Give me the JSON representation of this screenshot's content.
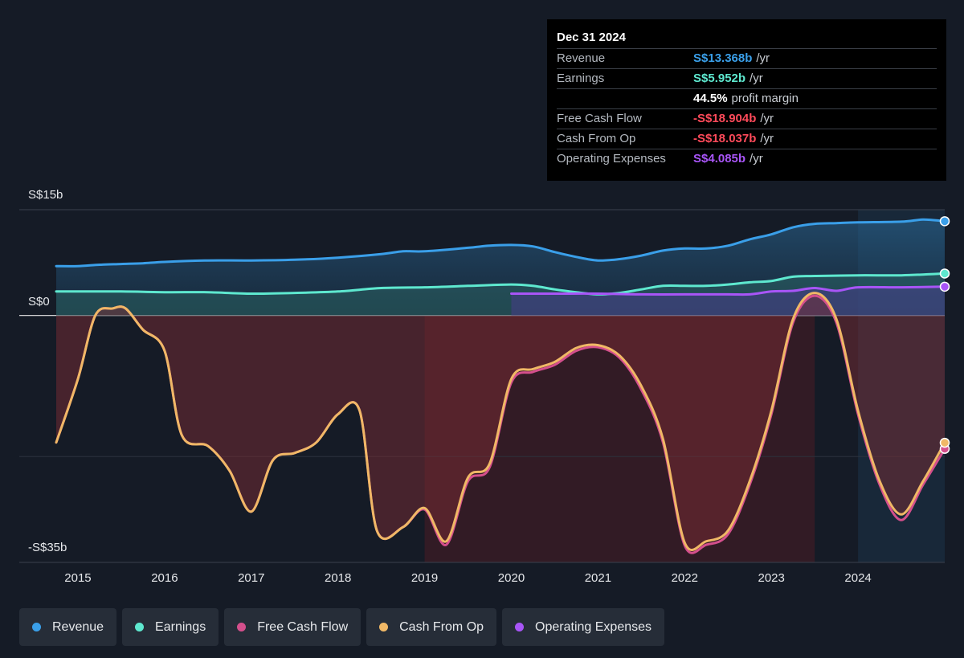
{
  "tooltip": {
    "date": "Dec 31 2024",
    "rows": [
      {
        "label": "Revenue",
        "value": "S$13.368b",
        "unit": "/yr",
        "color": "#3a9fe9"
      },
      {
        "label": "Earnings",
        "value": "S$5.952b",
        "unit": "/yr",
        "color": "#5ee8cf"
      },
      {
        "label": "",
        "value": "44.5%",
        "unit": "profit margin",
        "color": "#ffffff"
      },
      {
        "label": "Free Cash Flow",
        "value": "-S$18.904b",
        "unit": "/yr",
        "color": "#ff4a5a"
      },
      {
        "label": "Cash From Op",
        "value": "-S$18.037b",
        "unit": "/yr",
        "color": "#ff4a5a"
      },
      {
        "label": "Operating Expenses",
        "value": "S$4.085b",
        "unit": "/yr",
        "color": "#a855f7"
      }
    ]
  },
  "legend": [
    {
      "label": "Revenue",
      "color": "#3a9fe9"
    },
    {
      "label": "Earnings",
      "color": "#5ee8cf"
    },
    {
      "label": "Free Cash Flow",
      "color": "#d44f8c"
    },
    {
      "label": "Cash From Op",
      "color": "#f0b866"
    },
    {
      "label": "Operating Expenses",
      "color": "#a855f7"
    }
  ],
  "chart_data": {
    "type": "area",
    "y_unit": "S$ billions",
    "ylim": [
      -35,
      15
    ],
    "y_ticks": [
      {
        "value": 15,
        "label": "S$15b"
      },
      {
        "value": 0,
        "label": "S$0"
      },
      {
        "value": -35,
        "label": "-S$35b"
      }
    ],
    "x_ticks": [
      "2015",
      "2016",
      "2017",
      "2018",
      "2019",
      "2020",
      "2021",
      "2022",
      "2023",
      "2024"
    ],
    "xlim": [
      2014.75,
      2025.0
    ],
    "series": [
      {
        "name": "Revenue",
        "color": "#3a9fe9",
        "points": [
          [
            2014.75,
            7.0
          ],
          [
            2015.0,
            7.0
          ],
          [
            2015.25,
            7.2
          ],
          [
            2015.5,
            7.3
          ],
          [
            2015.75,
            7.4
          ],
          [
            2016.0,
            7.6
          ],
          [
            2016.5,
            7.8
          ],
          [
            2017.0,
            7.8
          ],
          [
            2017.5,
            7.9
          ],
          [
            2018.0,
            8.2
          ],
          [
            2018.5,
            8.7
          ],
          [
            2018.75,
            9.1
          ],
          [
            2019.0,
            9.1
          ],
          [
            2019.5,
            9.6
          ],
          [
            2019.75,
            9.9
          ],
          [
            2020.0,
            10.0
          ],
          [
            2020.25,
            9.8
          ],
          [
            2020.5,
            9.0
          ],
          [
            2020.75,
            8.3
          ],
          [
            2021.0,
            7.8
          ],
          [
            2021.25,
            8.0
          ],
          [
            2021.5,
            8.5
          ],
          [
            2021.75,
            9.2
          ],
          [
            2022.0,
            9.5
          ],
          [
            2022.25,
            9.5
          ],
          [
            2022.5,
            9.9
          ],
          [
            2022.75,
            10.8
          ],
          [
            2023.0,
            11.5
          ],
          [
            2023.25,
            12.5
          ],
          [
            2023.5,
            13.0
          ],
          [
            2023.75,
            13.1
          ],
          [
            2024.0,
            13.2
          ],
          [
            2024.5,
            13.3
          ],
          [
            2024.75,
            13.6
          ],
          [
            2025.0,
            13.368
          ]
        ]
      },
      {
        "name": "Earnings",
        "color": "#5ee8cf",
        "points": [
          [
            2014.75,
            3.4
          ],
          [
            2015.5,
            3.4
          ],
          [
            2016.0,
            3.3
          ],
          [
            2016.5,
            3.3
          ],
          [
            2017.0,
            3.1
          ],
          [
            2017.5,
            3.2
          ],
          [
            2018.0,
            3.4
          ],
          [
            2018.5,
            3.9
          ],
          [
            2019.0,
            4.0
          ],
          [
            2019.5,
            4.2
          ],
          [
            2020.0,
            4.4
          ],
          [
            2020.25,
            4.2
          ],
          [
            2020.5,
            3.7
          ],
          [
            2020.75,
            3.3
          ],
          [
            2021.0,
            3.0
          ],
          [
            2021.25,
            3.2
          ],
          [
            2021.5,
            3.7
          ],
          [
            2021.75,
            4.2
          ],
          [
            2022.0,
            4.2
          ],
          [
            2022.25,
            4.2
          ],
          [
            2022.5,
            4.4
          ],
          [
            2022.75,
            4.7
          ],
          [
            2023.0,
            4.9
          ],
          [
            2023.25,
            5.5
          ],
          [
            2023.5,
            5.6
          ],
          [
            2024.0,
            5.7
          ],
          [
            2024.5,
            5.7
          ],
          [
            2025.0,
            5.952
          ]
        ]
      },
      {
        "name": "Free Cash Flow",
        "color": "#d44f8c",
        "points": [
          [
            2014.75,
            -18.0
          ],
          [
            2015.0,
            -9.0
          ],
          [
            2015.2,
            0.0
          ],
          [
            2015.4,
            1.0
          ],
          [
            2015.55,
            1.0
          ],
          [
            2015.75,
            -2.0
          ],
          [
            2016.0,
            -5.0
          ],
          [
            2016.2,
            -17.0
          ],
          [
            2016.5,
            -18.5
          ],
          [
            2016.75,
            -22.0
          ],
          [
            2017.0,
            -27.8
          ],
          [
            2017.25,
            -20.5
          ],
          [
            2017.5,
            -19.5
          ],
          [
            2017.75,
            -18.0
          ],
          [
            2018.0,
            -14.0
          ],
          [
            2018.25,
            -13.5
          ],
          [
            2018.45,
            -30.5
          ],
          [
            2018.75,
            -30.0
          ],
          [
            2019.0,
            -27.5
          ],
          [
            2019.25,
            -32.5
          ],
          [
            2019.5,
            -23.5
          ],
          [
            2019.75,
            -21.5
          ],
          [
            2020.0,
            -9.5
          ],
          [
            2020.25,
            -8.0
          ],
          [
            2020.5,
            -7.0
          ],
          [
            2020.75,
            -5.0
          ],
          [
            2021.0,
            -4.5
          ],
          [
            2021.25,
            -6.0
          ],
          [
            2021.5,
            -10.5
          ],
          [
            2021.75,
            -18.0
          ],
          [
            2022.0,
            -32.6
          ],
          [
            2022.25,
            -32.5
          ],
          [
            2022.5,
            -31.0
          ],
          [
            2022.75,
            -24.0
          ],
          [
            2023.0,
            -14.0
          ],
          [
            2023.25,
            -1.0
          ],
          [
            2023.5,
            2.8
          ],
          [
            2023.75,
            -1.0
          ],
          [
            2024.0,
            -14.0
          ],
          [
            2024.25,
            -24.0
          ],
          [
            2024.5,
            -29.0
          ],
          [
            2024.75,
            -24.0
          ],
          [
            2025.0,
            -18.904
          ]
        ]
      },
      {
        "name": "Cash From Op",
        "color": "#f0b866",
        "points": [
          [
            2014.75,
            -18.0
          ],
          [
            2015.0,
            -9.0
          ],
          [
            2015.2,
            0.0
          ],
          [
            2015.4,
            1.0
          ],
          [
            2015.55,
            1.0
          ],
          [
            2015.75,
            -2.0
          ],
          [
            2016.0,
            -5.0
          ],
          [
            2016.2,
            -17.0
          ],
          [
            2016.5,
            -18.5
          ],
          [
            2016.75,
            -22.0
          ],
          [
            2017.0,
            -27.8
          ],
          [
            2017.25,
            -20.5
          ],
          [
            2017.5,
            -19.5
          ],
          [
            2017.75,
            -18.0
          ],
          [
            2018.0,
            -14.0
          ],
          [
            2018.25,
            -13.5
          ],
          [
            2018.45,
            -30.5
          ],
          [
            2018.75,
            -30.0
          ],
          [
            2019.0,
            -27.3
          ],
          [
            2019.25,
            -32.0
          ],
          [
            2019.5,
            -23.0
          ],
          [
            2019.75,
            -21.0
          ],
          [
            2020.0,
            -9.0
          ],
          [
            2020.25,
            -7.6
          ],
          [
            2020.5,
            -6.6
          ],
          [
            2020.75,
            -4.6
          ],
          [
            2021.0,
            -4.2
          ],
          [
            2021.25,
            -5.7
          ],
          [
            2021.5,
            -10.0
          ],
          [
            2021.75,
            -17.5
          ],
          [
            2022.0,
            -32.2
          ],
          [
            2022.25,
            -32.0
          ],
          [
            2022.5,
            -30.5
          ],
          [
            2022.75,
            -23.5
          ],
          [
            2023.0,
            -13.5
          ],
          [
            2023.25,
            -0.5
          ],
          [
            2023.5,
            3.2
          ],
          [
            2023.75,
            -0.5
          ],
          [
            2024.0,
            -13.5
          ],
          [
            2024.25,
            -23.5
          ],
          [
            2024.5,
            -28.2
          ],
          [
            2024.75,
            -23.5
          ],
          [
            2025.0,
            -18.037
          ]
        ]
      },
      {
        "name": "Operating Expenses",
        "color": "#a855f7",
        "points": [
          [
            2020.0,
            3.1
          ],
          [
            2020.5,
            3.1
          ],
          [
            2021.0,
            3.1
          ],
          [
            2021.5,
            3.0
          ],
          [
            2022.0,
            3.0
          ],
          [
            2022.5,
            3.0
          ],
          [
            2022.75,
            3.0
          ],
          [
            2023.0,
            3.4
          ],
          [
            2023.25,
            3.5
          ],
          [
            2023.5,
            3.9
          ],
          [
            2023.75,
            3.5
          ],
          [
            2024.0,
            4.0
          ],
          [
            2024.5,
            4.0
          ],
          [
            2025.0,
            4.085
          ]
        ]
      }
    ]
  }
}
